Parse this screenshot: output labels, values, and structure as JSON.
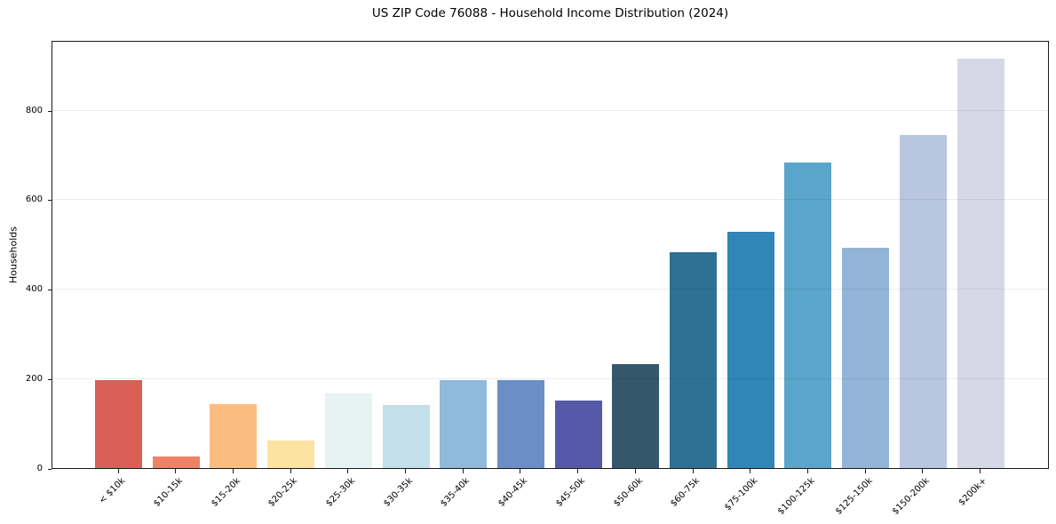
{
  "chart_data": {
    "type": "bar",
    "title": "US ZIP Code 76088 - Household Income Distribution (2024)",
    "xlabel": "",
    "ylabel": "Households",
    "categories": [
      "< $10k",
      "$10-15k",
      "$15-20k",
      "$20-25k",
      "$25-30k",
      "$30-35k",
      "$35-40k",
      "$40-45k",
      "$45-50k",
      "$50-60k",
      "$60-75k",
      "$75-100k",
      "$100-125k",
      "$125-150k",
      "$150-200k",
      "$200k+"
    ],
    "values": [
      196,
      25,
      143,
      61,
      166,
      141,
      196,
      196,
      150,
      232,
      482,
      528,
      683,
      492,
      744,
      915
    ],
    "bar_colors": [
      "#d95f57",
      "#ee8266",
      "#fbbc7f",
      "#fde3a1",
      "#e7f3f2",
      "#c3dfea",
      "#90badb",
      "#6a8ec6",
      "#5659a8",
      "#34576c",
      "#2f7195",
      "#2f86b7",
      "#5aa5c9",
      "#92b5d7",
      "#b8c6e0",
      "#d7d8e7"
    ],
    "yticks": [
      0,
      200,
      400,
      600,
      800
    ],
    "ylim": [
      0,
      957
    ],
    "gridlines_at": [
      200,
      400,
      600,
      800
    ],
    "grid": "horizontal-light",
    "legend": "none",
    "x_tick_rotation_deg": 45,
    "spine_color": "#1a1a1a",
    "background_color": "#ffffff"
  }
}
